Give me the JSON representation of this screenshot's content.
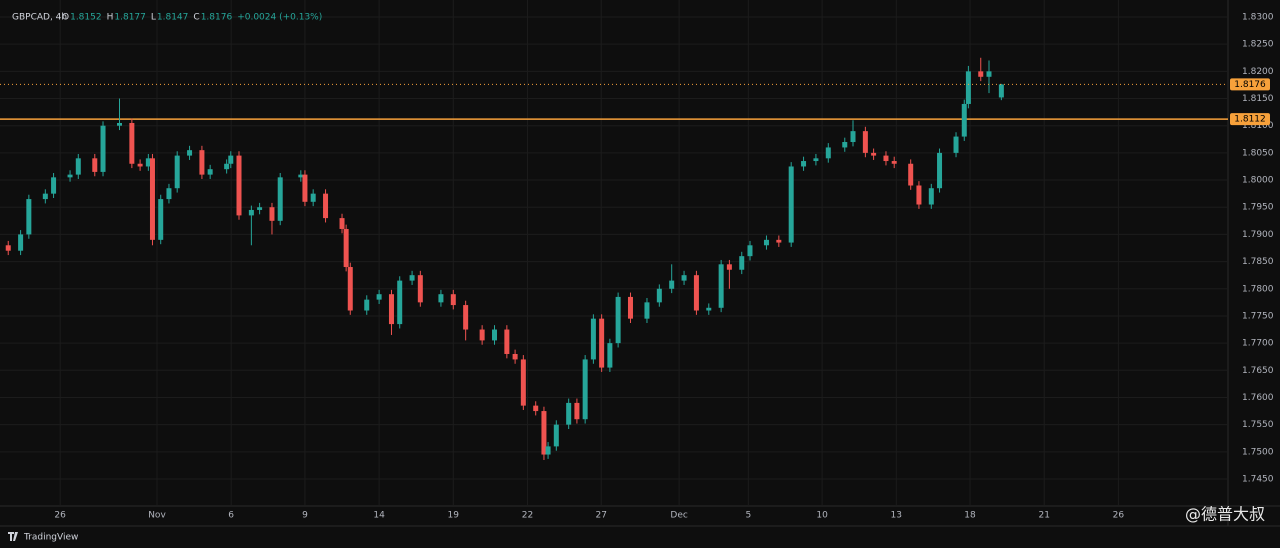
{
  "chart_data": {
    "type": "candlestick",
    "title": "GBPCAD, 4h",
    "legend_values": [
      {
        "key": "O",
        "value": "1.8152"
      },
      {
        "key": "H",
        "value": "1.8177"
      },
      {
        "key": "L",
        "value": "1.8147"
      },
      {
        "key": "C",
        "value": "1.8176"
      }
    ],
    "change": "+0.0024 (+0.13%)",
    "up_color": "#26a69a",
    "down_color": "#ef5350",
    "x": [
      0,
      3,
      5,
      9,
      11,
      15,
      17,
      21,
      23,
      27,
      30,
      32,
      34,
      35,
      37,
      39,
      41,
      44,
      47,
      49,
      53,
      54,
      56,
      59,
      61,
      64,
      66,
      71,
      72,
      74,
      77,
      81,
      82,
      83,
      87,
      90,
      93,
      95,
      98,
      100,
      105,
      108,
      111,
      115,
      118,
      121,
      123,
      125,
      128,
      130,
      131,
      133,
      136,
      138,
      140,
      142,
      144,
      146,
      148,
      151,
      155,
      158,
      161,
      164,
      167,
      170,
      173,
      175,
      178,
      180,
      184,
      187,
      190,
      193,
      196,
      199,
      203,
      205,
      208,
      210,
      213,
      215,
      219,
      221,
      224,
      226,
      230,
      232,
      233,
      236,
      238,
      241
    ],
    "open": [
      1.788,
      1.787,
      1.79,
      1.7965,
      1.7975,
      1.8005,
      1.801,
      1.804,
      1.8015,
      1.81,
      1.8105,
      1.803,
      1.8025,
      1.804,
      1.789,
      1.7965,
      1.7985,
      1.8045,
      1.8055,
      1.801,
      1.802,
      1.803,
      1.8045,
      1.7935,
      1.7945,
      1.795,
      1.7925,
      1.8005,
      1.801,
      1.796,
      1.7975,
      1.793,
      1.791,
      1.784,
      1.776,
      1.778,
      1.779,
      1.7735,
      1.7815,
      1.7825,
      1.7775,
      1.779,
      1.777,
      1.7725,
      1.7705,
      1.7725,
      1.768,
      1.767,
      1.7585,
      1.7575,
      1.7495,
      1.751,
      1.755,
      1.759,
      1.756,
      1.767,
      1.7745,
      1.7655,
      1.77,
      1.7785,
      1.7745,
      1.7775,
      1.78,
      1.7815,
      1.7825,
      1.776,
      1.7765,
      1.7845,
      1.7835,
      1.786,
      1.788,
      1.789,
      1.7885,
      1.8025,
      1.8035,
      1.804,
      1.806,
      1.807,
      1.809,
      1.805,
      1.8045,
      1.8035,
      1.803,
      1.799,
      1.7955,
      1.7985,
      1.805,
      1.808,
      1.814,
      1.82,
      1.819,
      1.8152
    ],
    "high": [
      1.7888,
      1.7908,
      1.7973,
      1.7983,
      1.8013,
      1.8018,
      1.8048,
      1.8048,
      1.8108,
      1.815,
      1.8113,
      1.8038,
      1.8048,
      1.8048,
      1.7973,
      1.7993,
      1.8053,
      1.8063,
      1.8063,
      1.8028,
      1.8038,
      1.8053,
      1.8053,
      1.7953,
      1.7958,
      1.7958,
      1.8013,
      1.8018,
      1.8018,
      1.7983,
      1.7983,
      1.7938,
      1.7918,
      1.7848,
      1.7788,
      1.7798,
      1.7798,
      1.7823,
      1.7833,
      1.7833,
      1.7798,
      1.7798,
      1.7778,
      1.7733,
      1.7733,
      1.7733,
      1.7688,
      1.7678,
      1.7593,
      1.7583,
      1.7518,
      1.7558,
      1.7598,
      1.7598,
      1.7678,
      1.7753,
      1.7753,
      1.7708,
      1.7793,
      1.7793,
      1.7783,
      1.7808,
      1.7845,
      1.7833,
      1.7833,
      1.7773,
      1.7853,
      1.7853,
      1.7868,
      1.7888,
      1.7898,
      1.7898,
      1.8033,
      1.8043,
      1.8048,
      1.8068,
      1.8078,
      1.811,
      1.8098,
      1.8058,
      1.8053,
      1.8043,
      1.8038,
      1.7998,
      1.7993,
      1.8058,
      1.8088,
      1.8148,
      1.821,
      1.8225,
      1.822,
      1.8177
    ],
    "low": [
      1.7862,
      1.7862,
      1.7892,
      1.7957,
      1.7967,
      1.7997,
      1.8002,
      1.8007,
      1.8007,
      1.8092,
      1.8022,
      1.8017,
      1.8017,
      1.788,
      1.7882,
      1.7957,
      1.7977,
      1.8037,
      1.8002,
      1.8002,
      1.8012,
      1.8022,
      1.7927,
      1.788,
      1.7937,
      1.79,
      1.7917,
      1.7997,
      1.7952,
      1.7952,
      1.7922,
      1.7902,
      1.7832,
      1.7752,
      1.7752,
      1.7772,
      1.7715,
      1.7727,
      1.7807,
      1.7767,
      1.7767,
      1.7762,
      1.7705,
      1.7697,
      1.7697,
      1.7672,
      1.7662,
      1.7577,
      1.7567,
      1.7485,
      1.7487,
      1.7502,
      1.7542,
      1.7552,
      1.7552,
      1.7662,
      1.7647,
      1.7647,
      1.7692,
      1.7737,
      1.7737,
      1.7767,
      1.7792,
      1.7807,
      1.7752,
      1.7752,
      1.7757,
      1.78,
      1.7827,
      1.7852,
      1.7872,
      1.7877,
      1.7877,
      1.8017,
      1.8027,
      1.8032,
      1.8052,
      1.8062,
      1.8042,
      1.8037,
      1.8027,
      1.8022,
      1.7982,
      1.7947,
      1.7947,
      1.7977,
      1.8042,
      1.8072,
      1.8132,
      1.8182,
      1.816,
      1.8147
    ],
    "close": [
      1.787,
      1.79,
      1.7965,
      1.7975,
      1.8005,
      1.801,
      1.804,
      1.8015,
      1.81,
      1.8105,
      1.803,
      1.8025,
      1.804,
      1.789,
      1.7965,
      1.7985,
      1.8045,
      1.8055,
      1.801,
      1.802,
      1.803,
      1.8045,
      1.7935,
      1.7945,
      1.795,
      1.7925,
      1.8005,
      1.801,
      1.796,
      1.7975,
      1.793,
      1.791,
      1.784,
      1.776,
      1.778,
      1.779,
      1.7735,
      1.7815,
      1.7825,
      1.7775,
      1.779,
      1.777,
      1.7725,
      1.7705,
      1.7725,
      1.768,
      1.767,
      1.7585,
      1.7575,
      1.7495,
      1.751,
      1.755,
      1.759,
      1.756,
      1.767,
      1.7745,
      1.7655,
      1.77,
      1.7785,
      1.7745,
      1.7775,
      1.78,
      1.7815,
      1.7825,
      1.776,
      1.7765,
      1.7845,
      1.7835,
      1.786,
      1.788,
      1.789,
      1.7885,
      1.8025,
      1.8035,
      1.804,
      1.806,
      1.807,
      1.809,
      1.805,
      1.8045,
      1.8035,
      1.803,
      1.799,
      1.7955,
      1.7985,
      1.805,
      1.808,
      1.814,
      1.82,
      1.819,
      1.82,
      1.8176
    ],
    "xlim": [
      -2,
      296
    ],
    "xticks": [
      {
        "value": 12.6,
        "label": "26"
      },
      {
        "value": 36.1,
        "label": "Nov"
      },
      {
        "value": 54.1,
        "label": "6"
      },
      {
        "value": 72,
        "label": "9"
      },
      {
        "value": 90,
        "label": "14"
      },
      {
        "value": 108,
        "label": "19"
      },
      {
        "value": 126,
        "label": "22"
      },
      {
        "value": 143.9,
        "label": "27"
      },
      {
        "value": 162.8,
        "label": "Dec"
      },
      {
        "value": 179.6,
        "label": "5"
      },
      {
        "value": 197.5,
        "label": "10"
      },
      {
        "value": 215.5,
        "label": "13"
      },
      {
        "value": 233.4,
        "label": "18"
      },
      {
        "value": 251.4,
        "label": "21"
      },
      {
        "value": 269.4,
        "label": "26"
      }
    ],
    "ylim": [
      1.745,
      1.83
    ],
    "yticks": [
      {
        "value": 1.745,
        "label": "1.7450"
      },
      {
        "value": 1.75,
        "label": "1.7500"
      },
      {
        "value": 1.755,
        "label": "1.7550"
      },
      {
        "value": 1.76,
        "label": "1.7600"
      },
      {
        "value": 1.765,
        "label": "1.7650"
      },
      {
        "value": 1.77,
        "label": "1.7700"
      },
      {
        "value": 1.775,
        "label": "1.7750"
      },
      {
        "value": 1.78,
        "label": "1.7800"
      },
      {
        "value": 1.785,
        "label": "1.7850"
      },
      {
        "value": 1.79,
        "label": "1.7900"
      },
      {
        "value": 1.795,
        "label": "1.7950"
      },
      {
        "value": 1.8,
        "label": "1.8000"
      },
      {
        "value": 1.805,
        "label": "1.8050"
      },
      {
        "value": 1.81,
        "label": "1.8100"
      },
      {
        "value": 1.815,
        "label": "1.8150"
      },
      {
        "value": 1.82,
        "label": "1.8200"
      },
      {
        "value": 1.825,
        "label": "1.8250"
      },
      {
        "value": 1.83,
        "label": "1.8300"
      }
    ],
    "grid": true,
    "last_price": {
      "value": 1.8176,
      "label": "1.8176"
    },
    "level_line": {
      "value": 1.8112,
      "label": "1.8112",
      "color": "#f7a13b"
    }
  },
  "footer": {
    "brand": "TradingView",
    "watermark": "@德普大叔"
  }
}
